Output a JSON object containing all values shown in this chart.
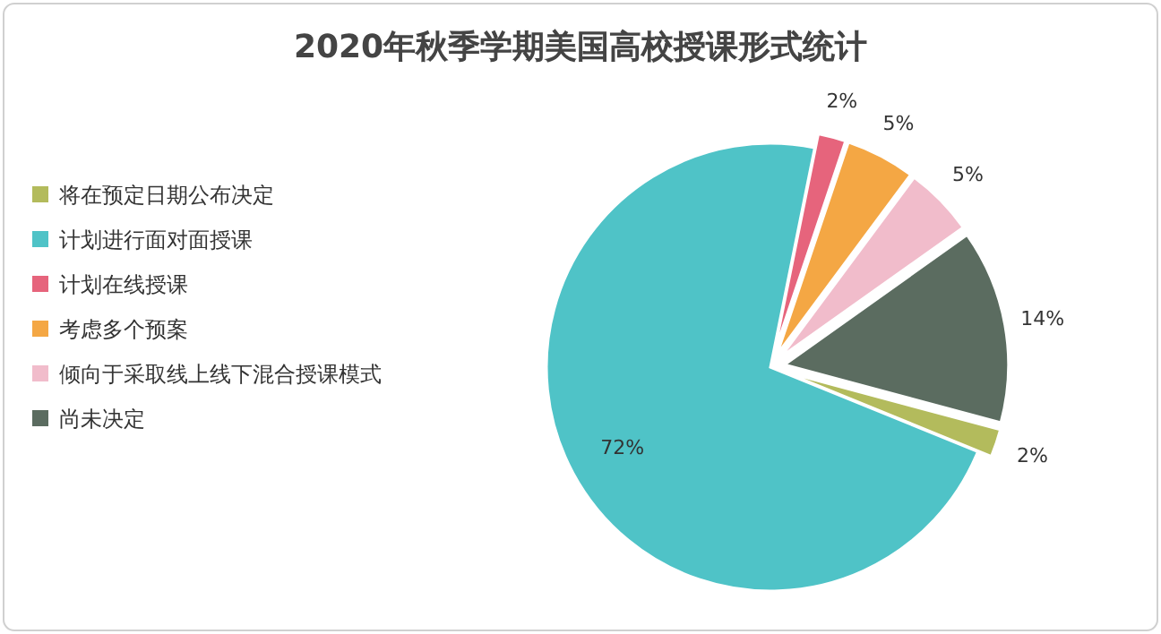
{
  "chart_data": {
    "type": "pie",
    "title": "2020年秋季学期美国高校授课形式统计",
    "categories": [
      "将在预定日期公布决定",
      "计划进行面对面授课",
      "计划在线授课",
      "考虑多个预案",
      "倾向于采取线上线下混合授课模式",
      "尚未决定"
    ],
    "values": [
      2,
      72,
      2,
      5,
      5,
      14
    ],
    "value_labels": [
      "2%",
      "72%",
      "2%",
      "5%",
      "5%",
      "14%"
    ],
    "colors": [
      "#b3bb5c",
      "#4fc3c7",
      "#e6647c",
      "#f4a744",
      "#f1bccb",
      "#5b6c60"
    ],
    "legend": "left"
  }
}
